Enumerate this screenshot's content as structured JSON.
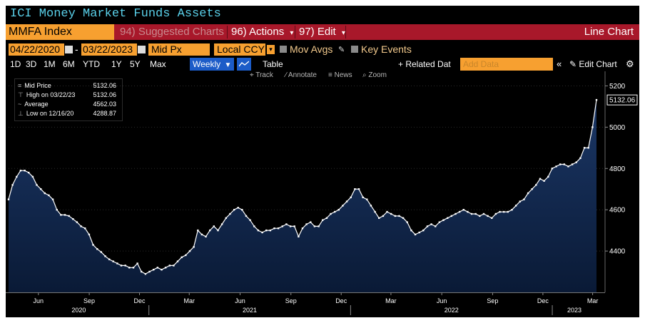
{
  "window": {
    "title": "ICI Money Market Funds Assets"
  },
  "command_bar": {
    "security": "MMFA Index",
    "suggested_charts": "94) Suggested Charts",
    "actions": "96) Actions",
    "edit": "97) Edit",
    "chart_type": "Line Chart",
    "arrow": "▾"
  },
  "settings_bar": {
    "start_date": "04/22/2020",
    "end_date": "03/22/2023",
    "date_sep": "-",
    "price_field": "Mid Px",
    "currency": "Local CCY",
    "mov_avgs": "Mov Avgs",
    "key_events": "Key Events"
  },
  "range_bar": {
    "ranges": [
      "1D",
      "3D",
      "1M",
      "6M",
      "YTD",
      "1Y",
      "5Y",
      "Max"
    ],
    "frequency": "Weekly",
    "table": "Table",
    "related": "+ Related Dat",
    "add_data_placeholder": "Add Data",
    "edit_chart": "Edit Chart"
  },
  "chart_tools": {
    "track": "Track",
    "annotate": "Annotate",
    "news": "News",
    "zoom": "Zoom"
  },
  "legend": {
    "rows": [
      {
        "label": "Mid Price",
        "value": "5132.06"
      },
      {
        "label": "High on 03/22/23",
        "value": "5132.06"
      },
      {
        "label": "Average",
        "value": "4562.03"
      },
      {
        "label": "Low on 12/16/20",
        "value": "4288.87"
      }
    ]
  },
  "colors": {
    "line": "#ffffff",
    "fill_top": "#1b3766",
    "fill_bottom": "#0a1a36",
    "accent": "#f7a030",
    "bar": "#a8182a"
  },
  "chart_data": {
    "type": "area",
    "ylim": [
      4200,
      5250
    ],
    "yticks": [
      4400,
      4600,
      4800,
      5000,
      5200
    ],
    "last_value_label": "5132.06",
    "x_month_labels": [
      "Jun",
      "Sep",
      "Dec",
      "Mar",
      "Jun",
      "Sep",
      "Dec",
      "Mar",
      "Jun",
      "Sep",
      "Dec",
      "Mar"
    ],
    "x_year_labels": [
      "2020",
      "2021",
      "2022",
      "2023"
    ],
    "x_start": "2020-04-22",
    "x_end": "2023-03-22",
    "series": [
      {
        "values": [
          4650,
          4720,
          4760,
          4790,
          4790,
          4780,
          4760,
          4720,
          4700,
          4680,
          4670,
          4650,
          4600,
          4575,
          4575,
          4570,
          4555,
          4540,
          4520,
          4510,
          4480,
          4430,
          4410,
          4395,
          4375,
          4360,
          4350,
          4340,
          4330,
          4330,
          4320,
          4320,
          4340,
          4300,
          4289,
          4300,
          4310,
          4320,
          4310,
          4320,
          4330,
          4330,
          4350,
          4370,
          4380,
          4400,
          4420,
          4500,
          4480,
          4470,
          4500,
          4520,
          4500,
          4530,
          4560,
          4580,
          4600,
          4610,
          4600,
          4570,
          4550,
          4520,
          4500,
          4490,
          4500,
          4500,
          4510,
          4510,
          4520,
          4530,
          4520,
          4520,
          4470,
          4510,
          4530,
          4540,
          4520,
          4520,
          4550,
          4560,
          4580,
          4590,
          4600,
          4620,
          4640,
          4660,
          4700,
          4700,
          4660,
          4650,
          4620,
          4590,
          4560,
          4570,
          4590,
          4580,
          4570,
          4570,
          4560,
          4540,
          4500,
          4480,
          4490,
          4500,
          4520,
          4530,
          4520,
          4540,
          4550,
          4560,
          4570,
          4580,
          4590,
          4600,
          4590,
          4580,
          4580,
          4570,
          4580,
          4570,
          4560,
          4580,
          4590,
          4590,
          4590,
          4600,
          4620,
          4640,
          4650,
          4680,
          4700,
          4720,
          4750,
          4740,
          4760,
          4800,
          4810,
          4820,
          4820,
          4810,
          4820,
          4830,
          4850,
          4900,
          4900,
          5000,
          5132.06
        ]
      }
    ]
  }
}
